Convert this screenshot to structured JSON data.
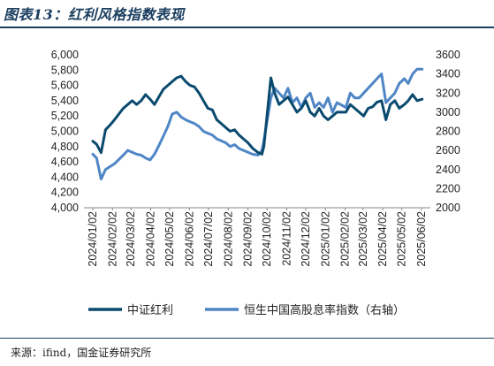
{
  "header": {
    "title": "图表13：红利风格指数表现"
  },
  "footer": {
    "source": "来源：ifind，国金证券研究所"
  },
  "colors": {
    "series1": "#0b4a6f",
    "series2": "#4f86c6",
    "rule": "#1c3f60"
  },
  "chart_data": {
    "type": "line",
    "title": "",
    "xlabel": "",
    "ylabel": "",
    "y_left_lim": [
      4000,
      6000
    ],
    "y_left_ticks": [
      "4,000",
      "4,200",
      "4,400",
      "4,600",
      "4,800",
      "5,000",
      "5,200",
      "5,400",
      "5,600",
      "5,800",
      "6,000"
    ],
    "y_right_lim": [
      2000,
      3600
    ],
    "y_right_ticks": [
      "2000",
      "2200",
      "2400",
      "2600",
      "2800",
      "3000",
      "3200",
      "3400",
      "3600"
    ],
    "x_ticks": [
      "2024/01/02",
      "2024/02/02",
      "2024/03/02",
      "2024/04/02",
      "2024/05/02",
      "2024/06/02",
      "2024/07/02",
      "2024/08/02",
      "2024/09/02",
      "2024/10/02",
      "2024/11/02",
      "2024/12/02",
      "2025/01/02",
      "2025/02/02",
      "2025/03/02",
      "2025/04/02",
      "2025/05/02",
      "2025/06/02"
    ],
    "grid": false,
    "legend_position": "bottom",
    "series": [
      {
        "name": "中证红利",
        "axis": "left",
        "x": [
          "2024/01/02",
          "2024/01/08",
          "2024/01/15",
          "2024/01/22",
          "2024/01/29",
          "2024/02/05",
          "2024/02/19",
          "2024/02/26",
          "2024/03/04",
          "2024/03/11",
          "2024/03/18",
          "2024/03/25",
          "2024/04/01",
          "2024/04/08",
          "2024/04/15",
          "2024/04/22",
          "2024/04/29",
          "2024/05/06",
          "2024/05/13",
          "2024/05/20",
          "2024/05/27",
          "2024/06/03",
          "2024/06/10",
          "2024/06/17",
          "2024/06/24",
          "2024/07/01",
          "2024/07/08",
          "2024/07/15",
          "2024/07/22",
          "2024/07/29",
          "2024/08/05",
          "2024/08/12",
          "2024/08/19",
          "2024/08/26",
          "2024/09/02",
          "2024/09/09",
          "2024/09/18",
          "2024/09/24",
          "2024/09/27",
          "2024/10/08",
          "2024/10/14",
          "2024/10/21",
          "2024/10/28",
          "2024/11/04",
          "2024/11/11",
          "2024/11/18",
          "2024/11/25",
          "2024/12/02",
          "2024/12/09",
          "2024/12/16",
          "2024/12/23",
          "2024/12/30",
          "2025/01/06",
          "2025/01/13",
          "2025/01/20",
          "2025/02/03",
          "2025/02/10",
          "2025/02/17",
          "2025/02/24",
          "2025/03/03",
          "2025/03/10",
          "2025/03/17",
          "2025/03/24",
          "2025/03/31",
          "2025/04/07",
          "2025/04/14",
          "2025/04/21",
          "2025/04/28",
          "2025/05/06",
          "2025/05/12",
          "2025/05/19",
          "2025/05/26",
          "2025/06/03"
        ],
        "values": [
          4870,
          4830,
          4720,
          5020,
          5080,
          5150,
          5300,
          5350,
          5400,
          5350,
          5400,
          5480,
          5420,
          5350,
          5450,
          5550,
          5600,
          5650,
          5700,
          5720,
          5650,
          5600,
          5580,
          5500,
          5400,
          5300,
          5280,
          5150,
          5100,
          5050,
          5000,
          5020,
          4950,
          4900,
          4850,
          4780,
          4720,
          4700,
          4800,
          5700,
          5500,
          5350,
          5400,
          5450,
          5350,
          5250,
          5300,
          5400,
          5250,
          5200,
          5300,
          5200,
          5150,
          5200,
          5250,
          5250,
          5350,
          5300,
          5250,
          5200,
          5300,
          5320,
          5380,
          5400,
          5150,
          5350,
          5400,
          5300,
          5350,
          5400,
          5480,
          5400,
          5420
        ]
      },
      {
        "name": "恒生中国高股息率指数（右轴）",
        "axis": "right",
        "x": [
          "2024/01/02",
          "2024/01/08",
          "2024/01/15",
          "2024/01/22",
          "2024/01/29",
          "2024/02/05",
          "2024/02/19",
          "2024/02/26",
          "2024/03/04",
          "2024/03/11",
          "2024/03/18",
          "2024/03/25",
          "2024/04/01",
          "2024/04/08",
          "2024/04/15",
          "2024/04/22",
          "2024/04/29",
          "2024/05/06",
          "2024/05/13",
          "2024/05/20",
          "2024/05/27",
          "2024/06/03",
          "2024/06/10",
          "2024/06/17",
          "2024/06/24",
          "2024/07/01",
          "2024/07/08",
          "2024/07/15",
          "2024/07/22",
          "2024/07/29",
          "2024/08/05",
          "2024/08/12",
          "2024/08/19",
          "2024/08/26",
          "2024/09/02",
          "2024/09/09",
          "2024/09/18",
          "2024/09/24",
          "2024/09/27",
          "2024/10/08",
          "2024/10/14",
          "2024/10/21",
          "2024/10/28",
          "2024/11/04",
          "2024/11/11",
          "2024/11/18",
          "2024/11/25",
          "2024/12/02",
          "2024/12/09",
          "2024/12/16",
          "2024/12/23",
          "2024/12/30",
          "2025/01/06",
          "2025/01/13",
          "2025/01/20",
          "2025/02/03",
          "2025/02/10",
          "2025/02/17",
          "2025/02/24",
          "2025/03/03",
          "2025/03/10",
          "2025/03/17",
          "2025/03/24",
          "2025/03/31",
          "2025/04/07",
          "2025/04/14",
          "2025/04/21",
          "2025/04/28",
          "2025/05/06",
          "2025/05/12",
          "2025/05/19",
          "2025/05/26",
          "2025/06/03"
        ],
        "values": [
          2560,
          2520,
          2300,
          2400,
          2430,
          2460,
          2550,
          2600,
          2580,
          2560,
          2550,
          2520,
          2500,
          2560,
          2650,
          2750,
          2850,
          2980,
          3000,
          2950,
          2920,
          2900,
          2880,
          2850,
          2800,
          2780,
          2760,
          2720,
          2700,
          2680,
          2640,
          2660,
          2620,
          2600,
          2580,
          2560,
          2550,
          2600,
          2700,
          3150,
          3250,
          3200,
          3150,
          3250,
          3100,
          3150,
          3050,
          3150,
          3200,
          3050,
          3100,
          3050,
          3150,
          3000,
          3100,
          3050,
          3200,
          3150,
          3150,
          3200,
          3250,
          3300,
          3350,
          3400,
          3100,
          3150,
          3200,
          3300,
          3350,
          3300,
          3400,
          3450,
          3450
        ]
      }
    ]
  }
}
